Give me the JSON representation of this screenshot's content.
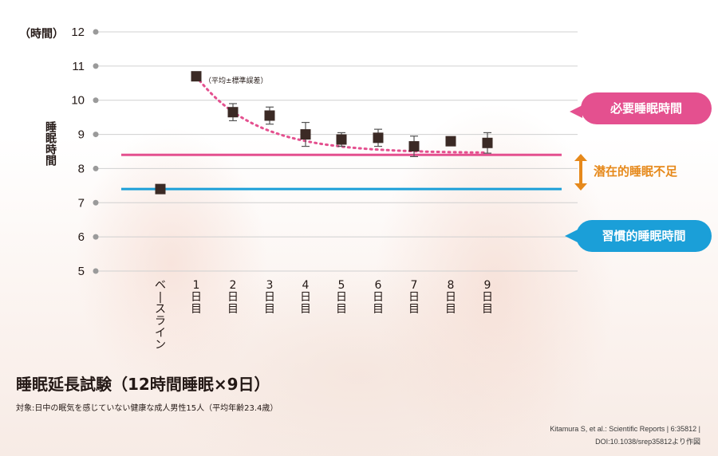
{
  "chart_data": {
    "type": "line",
    "title": "睡眠延長試験（12時間睡眠×9日）",
    "subtitle": "対象:日中の眠気を感じていない健康な成人男性15人（平均年齢23.4歳）",
    "ylabel": "睡眠時間",
    "y_unit": "（時間）",
    "ylim": [
      5,
      12
    ],
    "y_ticks": [
      "12",
      "11",
      "10",
      "9",
      "8",
      "7",
      "6",
      "5"
    ],
    "categories": [
      "ベースライン",
      "1日目",
      "2日目",
      "3日目",
      "4日目",
      "5日目",
      "6日目",
      "7日目",
      "8日目",
      "9日目"
    ],
    "series": [
      {
        "name": "睡眠時間（平均±標準誤差）",
        "values": [
          7.4,
          10.7,
          9.65,
          9.55,
          9.0,
          8.85,
          8.9,
          8.65,
          8.8,
          8.75
        ],
        "errors": [
          0.05,
          0.12,
          0.25,
          0.25,
          0.35,
          0.2,
          0.25,
          0.3,
          0.12,
          0.3
        ]
      }
    ],
    "trend_line": {
      "name": "近似曲線",
      "from_category": "1日目",
      "asymptote": 8.45
    },
    "reference_lines": [
      {
        "name": "必要睡眠時間",
        "value": 8.4,
        "color": "#e4508f"
      },
      {
        "name": "習慣的睡眠時間",
        "value": 7.4,
        "color": "#1b9fd8"
      }
    ],
    "gap_label": "潜在的睡眠不足",
    "error_legend": "（平均±標準誤差）"
  },
  "citation": {
    "line1": "Kitamura S, et al.: Scientific Reports | 6:35812 |",
    "line2": "DOI:10.1038/srep35812より作図"
  },
  "colors": {
    "pink": "#e4508f",
    "blue": "#1b9fd8",
    "orange": "#e6891b",
    "marker": "#3b2a25",
    "grid": "#d0d0d0"
  }
}
